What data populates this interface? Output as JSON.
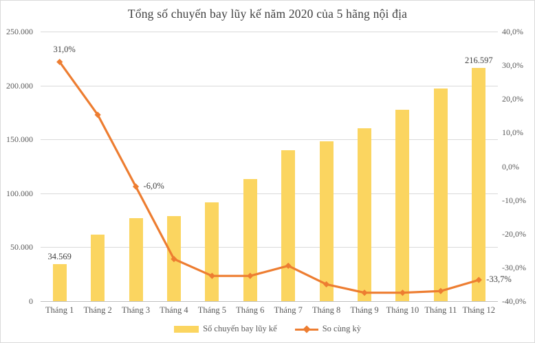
{
  "chart_data": {
    "type": "combo-bar-line",
    "title": "Tổng số chuyến bay lũy kế năm 2020 của 5 hãng nội địa",
    "categories": [
      "Tháng 1",
      "Tháng 2",
      "Tháng 3",
      "Tháng 4",
      "Tháng 5",
      "Tháng 6",
      "Tháng 7",
      "Tháng 8",
      "Tháng 9",
      "Tháng 10",
      "Tháng 11",
      "Tháng 12"
    ],
    "series": [
      {
        "name": "Số chuyến bay lũy kế",
        "type": "bar",
        "axis": "left",
        "color": "#fbd560",
        "values": [
          34569,
          61500,
          77000,
          78700,
          91700,
          113000,
          140000,
          148500,
          160000,
          177500,
          197000,
          216597
        ]
      },
      {
        "name": "So cùng kỳ",
        "type": "line",
        "axis": "right",
        "color": "#ed7d31",
        "values": [
          31.0,
          15.3,
          -6.0,
          -27.5,
          -32.5,
          -32.5,
          -29.5,
          -35.0,
          -37.5,
          -37.5,
          -37.0,
          -33.7
        ]
      }
    ],
    "left_axis": {
      "min": 0,
      "max": 250000,
      "tick_labels": [
        "250.000",
        "200.000",
        "150.000",
        "100.000",
        "50.000",
        "0"
      ]
    },
    "right_axis": {
      "min": -40,
      "max": 40,
      "tick_labels": [
        "40,0%",
        "30,0%",
        "20,0%",
        "10,0%",
        "0,0%",
        "-10,0%",
        "-20,0%",
        "-30,0%",
        "-40,0%"
      ]
    },
    "data_labels": {
      "bar": [
        {
          "index": 0,
          "text": "34.569"
        },
        {
          "index": 11,
          "text": "216.597"
        }
      ],
      "line": [
        {
          "index": 0,
          "text": "31,0%",
          "placement": "above"
        },
        {
          "index": 2,
          "text": "-6,0%",
          "placement": "right"
        },
        {
          "index": 11,
          "text": "-33,7%",
          "placement": "right"
        }
      ]
    },
    "legend": [
      {
        "label": "Số chuyến bay lũy kế",
        "swatch": "bar"
      },
      {
        "label": "So cùng kỳ",
        "swatch": "line"
      }
    ],
    "grid": true,
    "legend_position": "bottom",
    "colors": {
      "bar": "#fbd560",
      "line": "#ed7d31",
      "grid": "#d9d9d9",
      "axis_text": "#595959",
      "title_text": "#3f3f3f"
    }
  }
}
